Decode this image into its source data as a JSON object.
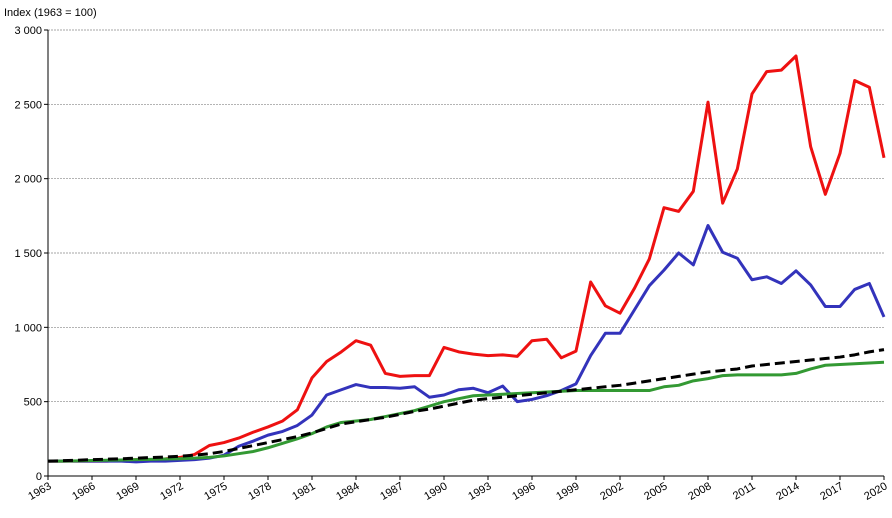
{
  "chart_data": {
    "type": "line",
    "title": "Index (1963 = 100)",
    "x": [
      1963,
      1964,
      1965,
      1966,
      1967,
      1968,
      1969,
      1970,
      1971,
      1972,
      1973,
      1974,
      1975,
      1976,
      1977,
      1978,
      1979,
      1980,
      1981,
      1982,
      1983,
      1984,
      1985,
      1986,
      1987,
      1988,
      1989,
      1990,
      1991,
      1992,
      1993,
      1994,
      1995,
      1996,
      1997,
      1998,
      1999,
      2000,
      2001,
      2002,
      2003,
      2004,
      2005,
      2006,
      2007,
      2008,
      2009,
      2010,
      2011,
      2012,
      2013,
      2014,
      2015,
      2016,
      2017,
      2018,
      2019,
      2020
    ],
    "series": [
      {
        "color": "#ee1111",
        "values": [
          100,
          100,
          100,
          100,
          100,
          105,
          110,
          110,
          115,
          125,
          145,
          205,
          225,
          255,
          295,
          330,
          370,
          445,
          660,
          770,
          835,
          910,
          880,
          690,
          670,
          675,
          675,
          865,
          835,
          820,
          810,
          815,
          805,
          910,
          920,
          795,
          840,
          1305,
          1145,
          1095,
          1265,
          1460,
          1805,
          1780,
          1915,
          2515,
          1835,
          2065,
          2570,
          2720,
          2730,
          2825,
          2215,
          1895,
          2170,
          2660,
          2615,
          2140
        ]
      },
      {
        "color": "#3333bb",
        "values": [
          100,
          100,
          100,
          100,
          100,
          100,
          95,
          100,
          100,
          105,
          110,
          120,
          140,
          200,
          235,
          275,
          300,
          340,
          410,
          545,
          580,
          615,
          595,
          595,
          590,
          600,
          530,
          545,
          580,
          590,
          560,
          605,
          500,
          515,
          540,
          575,
          620,
          810,
          960,
          960,
          1120,
          1280,
          1385,
          1500,
          1420,
          1685,
          1505,
          1465,
          1320,
          1340,
          1295,
          1380,
          1285,
          1140,
          1140,
          1255,
          1295,
          1070
        ]
      },
      {
        "color": "#339933",
        "values": [
          100,
          100,
          102,
          104,
          106,
          108,
          110,
          112,
          114,
          116,
          120,
          125,
          135,
          150,
          165,
          190,
          220,
          250,
          285,
          330,
          360,
          370,
          380,
          400,
          420,
          440,
          470,
          500,
          520,
          540,
          545,
          550,
          555,
          560,
          565,
          570,
          575,
          575,
          575,
          575,
          575,
          575,
          600,
          610,
          640,
          655,
          675,
          680,
          680,
          680,
          680,
          690,
          720,
          745,
          750,
          755,
          760,
          765
        ]
      },
      {
        "color": "#000000",
        "dashed": true,
        "values": [
          100,
          103,
          106,
          110,
          113,
          116,
          120,
          124,
          128,
          133,
          140,
          150,
          165,
          185,
          205,
          225,
          245,
          265,
          290,
          320,
          350,
          365,
          380,
          395,
          415,
          435,
          450,
          470,
          490,
          510,
          520,
          530,
          540,
          550,
          560,
          570,
          580,
          590,
          600,
          610,
          625,
          640,
          655,
          670,
          685,
          700,
          710,
          720,
          740,
          750,
          760,
          770,
          780,
          790,
          800,
          815,
          835,
          850
        ]
      }
    ],
    "xlim": [
      1963,
      2020
    ],
    "xticks": [
      1963,
      1966,
      1969,
      1972,
      1975,
      1978,
      1981,
      1984,
      1987,
      1990,
      1993,
      1996,
      1999,
      2002,
      2005,
      2008,
      2011,
      2014,
      2017,
      2020
    ],
    "ylim": [
      0,
      3000
    ],
    "yticks": [
      0,
      {
        "value": 500,
        "label": "500"
      },
      {
        "value": 1000,
        "label": "1 000"
      },
      {
        "value": 1500,
        "label": "1 500"
      },
      {
        "value": 2000,
        "label": "2 000"
      },
      {
        "value": 2500,
        "label": "2 500"
      },
      {
        "value": 3000,
        "label": "3 000"
      }
    ],
    "grid": true
  }
}
